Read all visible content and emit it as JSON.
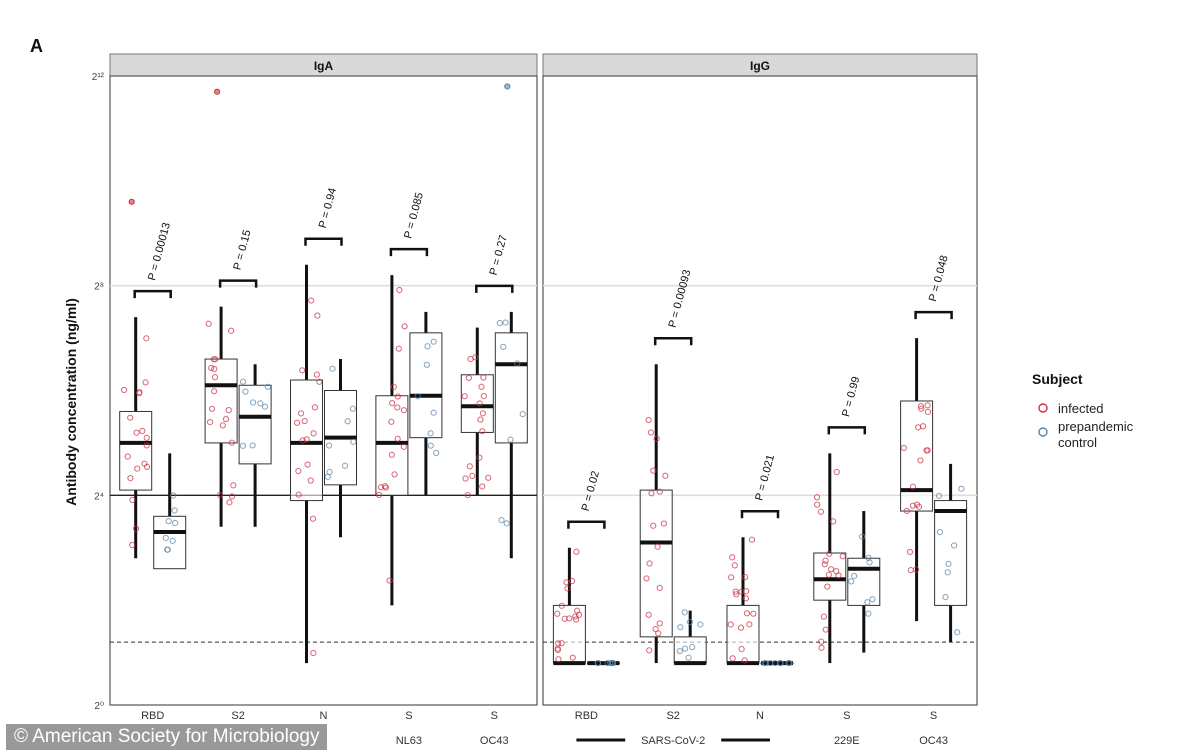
{
  "panel_label": "A",
  "credit": "© American Society for Microbiology",
  "legend": {
    "title": "Subject",
    "infected_label": "infected",
    "control_label_1": "prepandemic",
    "control_label_2": "control"
  },
  "colors": {
    "infected": "#cc3344",
    "control": "#5b85aa",
    "facet_strip": "#d9d9d9",
    "box_edge": "#333333",
    "reference_line": "#dddddd",
    "lod_line": "#333333"
  },
  "chart_data": {
    "type": "box",
    "ylabel": "Antibody concentration (ng/ml)",
    "yscale": "log2",
    "y_ticks": [
      "2⁰",
      "2⁴",
      "2⁸",
      "2¹²"
    ],
    "ylim_log2": [
      0,
      12
    ],
    "detection_limit_log2": 1.2,
    "reference_lines_log2": [
      4,
      8
    ],
    "facets": [
      {
        "name": "IgA",
        "antigens": [
          {
            "label": "RBD",
            "sublabel": "",
            "p": "P = 0.00013",
            "infected": {
              "min": 2.8,
              "q1": 4.1,
              "median": 5.0,
              "q3": 5.6,
              "max": 7.4,
              "outlier": 9.6
            },
            "control": {
              "min": 2.6,
              "q1": 2.6,
              "median": 3.3,
              "q3": 3.6,
              "max": 4.8
            }
          },
          {
            "label": "S2",
            "sublabel": "",
            "p": "P = 0.15",
            "infected": {
              "min": 3.4,
              "q1": 5.0,
              "median": 6.1,
              "q3": 6.6,
              "max": 7.6,
              "outlier": 11.7
            },
            "control": {
              "min": 3.4,
              "q1": 4.6,
              "median": 5.5,
              "q3": 6.1,
              "max": 6.5
            }
          },
          {
            "label": "N",
            "sublabel": "",
            "p": "P = 0.94",
            "infected": {
              "min": 0.8,
              "q1": 3.9,
              "median": 5.0,
              "q3": 6.2,
              "max": 8.4
            },
            "control": {
              "min": 3.2,
              "q1": 4.2,
              "median": 5.1,
              "q3": 6.0,
              "max": 6.6
            }
          },
          {
            "label": "S",
            "sublabel": "NL63",
            "p": "P = 0.085",
            "infected": {
              "min": 1.9,
              "q1": 4.0,
              "median": 5.0,
              "q3": 5.9,
              "max": 8.2
            },
            "control": {
              "min": 4.0,
              "q1": 5.1,
              "median": 5.9,
              "q3": 7.1,
              "max": 7.5
            }
          },
          {
            "label": "S",
            "sublabel": "OC43",
            "p": "P = 0.27",
            "infected": {
              "min": 4.0,
              "q1": 5.2,
              "median": 5.7,
              "q3": 6.3,
              "max": 7.2
            },
            "control": {
              "min": 2.8,
              "q1": 5.0,
              "median": 6.5,
              "q3": 7.1,
              "max": 7.5,
              "outlier": 11.8
            }
          }
        ]
      },
      {
        "name": "IgG",
        "antigens": [
          {
            "label": "RBD",
            "sublabel": "",
            "p": "P = 0.02",
            "infected": {
              "min": 0.8,
              "q1": 0.8,
              "median": 0.8,
              "q3": 1.9,
              "max": 3.0
            },
            "control": {
              "min": 0.8,
              "q1": 0.8,
              "median": 0.8,
              "q3": 0.8,
              "max": 0.8
            }
          },
          {
            "label": "S2",
            "sublabel": "",
            "p": "P = 0.00093",
            "infected": {
              "min": 0.8,
              "q1": 1.3,
              "median": 3.1,
              "q3": 4.1,
              "max": 6.5
            },
            "control": {
              "min": 0.8,
              "q1": 0.8,
              "median": 0.8,
              "q3": 1.3,
              "max": 1.8
            }
          },
          {
            "label": "N",
            "sublabel": "",
            "p": "P = 0.021",
            "infected": {
              "min": 0.8,
              "q1": 0.8,
              "median": 0.8,
              "q3": 1.9,
              "max": 3.2
            },
            "control": {
              "min": 0.8,
              "q1": 0.8,
              "median": 0.8,
              "q3": 0.8,
              "max": 0.8
            }
          },
          {
            "label": "S",
            "sublabel": "229E",
            "p": "P = 0.99",
            "infected": {
              "min": 0.8,
              "q1": 2.0,
              "median": 2.4,
              "q3": 2.9,
              "max": 4.8
            },
            "control": {
              "min": 1.0,
              "q1": 1.9,
              "median": 2.6,
              "q3": 2.8,
              "max": 3.7
            }
          },
          {
            "label": "S",
            "sublabel": "OC43",
            "p": "P = 0.048",
            "infected": {
              "min": 1.6,
              "q1": 3.7,
              "median": 4.1,
              "q3": 5.8,
              "max": 7.0
            },
            "control": {
              "min": 1.2,
              "q1": 1.9,
              "median": 3.7,
              "q3": 3.9,
              "max": 4.6
            }
          }
        ]
      }
    ],
    "x_group_labels": [
      {
        "facet": "IgG",
        "from": 0,
        "to": 2,
        "label": "SARS-CoV-2"
      }
    ]
  }
}
